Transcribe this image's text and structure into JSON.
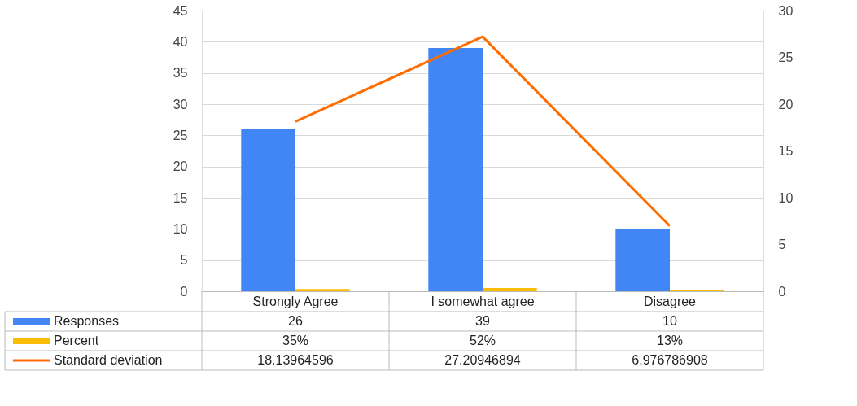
{
  "chart_data": {
    "type": "bar",
    "categories": [
      "Strongly Agree",
      "I somewhat agree",
      "Disagree"
    ],
    "series": [
      {
        "name": "Responses",
        "color": "#4285f4",
        "values": [
          26,
          39,
          10
        ]
      },
      {
        "name": "Percent",
        "color": "#fbbc04",
        "values": [
          0.35,
          0.52,
          0.13
        ],
        "value_labels": [
          "35%",
          "52%",
          "13%"
        ]
      },
      {
        "name": "Standard deviation",
        "type": "line",
        "axis": "y2",
        "color": "#ff6d01",
        "values": [
          18.13964596,
          27.20946894,
          6.976786908
        ]
      }
    ],
    "ylim": [
      0,
      45
    ],
    "yticks": [
      0,
      5,
      10,
      15,
      20,
      25,
      30,
      35,
      40,
      45
    ],
    "y2lim": [
      0,
      30
    ],
    "y2ticks": [
      0,
      5,
      10,
      15,
      20,
      25,
      30
    ],
    "grid": "y",
    "legend": "bottom left",
    "marker": "none",
    "line_style": "solid",
    "data_labels": true
  }
}
